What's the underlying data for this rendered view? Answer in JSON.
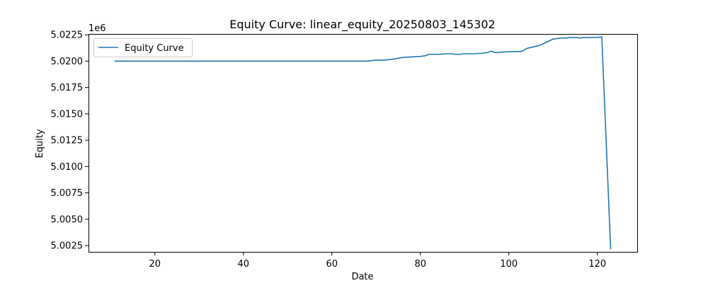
{
  "chart_data": {
    "type": "line",
    "title": "Equity Curve: linear_equity_20250803_145302",
    "xlabel": "Date",
    "ylabel": "Equity",
    "y_offset_label": "1e6",
    "xlim": [
      5,
      129
    ],
    "ylim": [
      5.0019,
      5.02258
    ],
    "xticks": [
      20,
      40,
      60,
      80,
      100,
      120
    ],
    "yticks": [
      5.0025,
      5.005,
      5.0075,
      5.01,
      5.0125,
      5.015,
      5.0175,
      5.02,
      5.0225
    ],
    "ytick_labels": [
      "5.0025",
      "5.0050",
      "5.0075",
      "5.0100",
      "5.0125",
      "5.0150",
      "5.0175",
      "5.0200",
      "5.0225"
    ],
    "grid": false,
    "legend_position": "top-left",
    "series": [
      {
        "name": "Equity Curve",
        "color": "#1f77b4",
        "x": [
          11,
          20,
          30,
          40,
          50,
          60,
          68,
          70,
          72,
          74,
          76,
          78,
          80,
          81,
          82,
          84,
          86,
          87,
          88,
          89,
          90,
          92,
          94,
          95,
          96,
          97,
          98,
          100,
          102,
          103,
          104,
          105,
          106,
          107,
          108,
          109,
          110,
          112,
          113,
          114,
          115,
          116,
          117,
          118,
          119,
          120,
          121,
          123
        ],
        "y": [
          5.02,
          5.02,
          5.02,
          5.02,
          5.02,
          5.02,
          5.02,
          5.0201,
          5.0201,
          5.0202,
          5.02035,
          5.0204,
          5.02045,
          5.0205,
          5.02065,
          5.02065,
          5.0207,
          5.0207,
          5.02065,
          5.02065,
          5.0207,
          5.0207,
          5.02075,
          5.0208,
          5.02095,
          5.0208,
          5.02085,
          5.0209,
          5.0209,
          5.02095,
          5.0212,
          5.0213,
          5.0214,
          5.0215,
          5.0217,
          5.0219,
          5.0221,
          5.0222,
          5.0222,
          5.02225,
          5.02225,
          5.0222,
          5.02225,
          5.02225,
          5.02225,
          5.02225,
          5.0223,
          5.0022
        ]
      }
    ]
  }
}
